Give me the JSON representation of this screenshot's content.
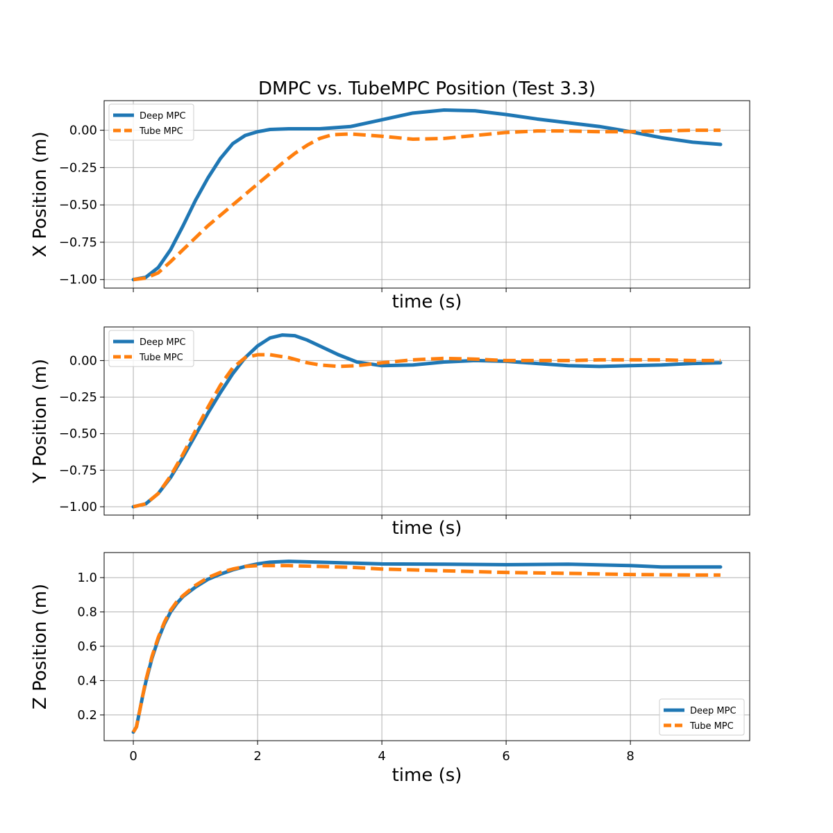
{
  "chart_data": [
    {
      "type": "line",
      "title": "DMPC vs. TubeMPC Position (Test 3.3)",
      "xlabel": "time (s)",
      "ylabel": "X Position (m)",
      "xlim": [
        -0.47,
        9.92
      ],
      "ylim": [
        -1.057,
        0.198
      ],
      "x_ticks": [
        0,
        2,
        4,
        6,
        8
      ],
      "x_tick_labels": [
        "",
        "",
        "",
        "",
        ""
      ],
      "y_ticks": [
        -1.0,
        -0.75,
        -0.5,
        -0.25,
        0.0
      ],
      "y_tick_labels": [
        "−1.00",
        "−0.75",
        "−0.50",
        "−0.25",
        "0.00"
      ],
      "grid": true,
      "legend": "upper-left",
      "series": [
        {
          "name": "Deep MPC",
          "color": "#1f77b4",
          "style": "solid",
          "points": [
            [
              0,
              -1.0
            ],
            [
              0.2,
              -0.985
            ],
            [
              0.4,
              -0.92
            ],
            [
              0.6,
              -0.8
            ],
            [
              0.8,
              -0.64
            ],
            [
              1.0,
              -0.47
            ],
            [
              1.2,
              -0.32
            ],
            [
              1.4,
              -0.19
            ],
            [
              1.6,
              -0.09
            ],
            [
              1.8,
              -0.035
            ],
            [
              2.0,
              -0.01
            ],
            [
              2.2,
              0.005
            ],
            [
              2.5,
              0.01
            ],
            [
              3.0,
              0.01
            ],
            [
              3.5,
              0.025
            ],
            [
              4.0,
              0.07
            ],
            [
              4.5,
              0.115
            ],
            [
              5.0,
              0.135
            ],
            [
              5.5,
              0.13
            ],
            [
              6.0,
              0.105
            ],
            [
              6.5,
              0.075
            ],
            [
              7.0,
              0.05
            ],
            [
              7.5,
              0.025
            ],
            [
              8.0,
              -0.01
            ],
            [
              8.5,
              -0.05
            ],
            [
              9.0,
              -0.08
            ],
            [
              9.45,
              -0.095
            ]
          ]
        },
        {
          "name": "Tube MPC",
          "color": "#ff7f0e",
          "style": "dashed",
          "points": [
            [
              0,
              -1.0
            ],
            [
              0.2,
              -0.99
            ],
            [
              0.4,
              -0.955
            ],
            [
              0.6,
              -0.88
            ],
            [
              0.8,
              -0.8
            ],
            [
              1.0,
              -0.72
            ],
            [
              1.2,
              -0.64
            ],
            [
              1.4,
              -0.57
            ],
            [
              1.6,
              -0.5
            ],
            [
              1.8,
              -0.43
            ],
            [
              2.0,
              -0.36
            ],
            [
              2.2,
              -0.29
            ],
            [
              2.4,
              -0.22
            ],
            [
              2.6,
              -0.155
            ],
            [
              2.8,
              -0.1
            ],
            [
              3.0,
              -0.055
            ],
            [
              3.2,
              -0.03
            ],
            [
              3.5,
              -0.025
            ],
            [
              4.0,
              -0.04
            ],
            [
              4.5,
              -0.06
            ],
            [
              5.0,
              -0.055
            ],
            [
              5.5,
              -0.035
            ],
            [
              6.0,
              -0.015
            ],
            [
              6.5,
              -0.005
            ],
            [
              7.0,
              -0.005
            ],
            [
              7.5,
              -0.01
            ],
            [
              8.0,
              -0.01
            ],
            [
              8.5,
              -0.005
            ],
            [
              9.0,
              0.0
            ],
            [
              9.45,
              0.0
            ]
          ]
        }
      ]
    },
    {
      "type": "line",
      "title": "",
      "xlabel": "time (s)",
      "ylabel": "Y Position (m)",
      "xlim": [
        -0.47,
        9.92
      ],
      "ylim": [
        -1.057,
        0.23
      ],
      "x_ticks": [
        0,
        2,
        4,
        6,
        8
      ],
      "x_tick_labels": [
        "",
        "",
        "",
        "",
        ""
      ],
      "y_ticks": [
        -1.0,
        -0.75,
        -0.5,
        -0.25,
        0.0
      ],
      "y_tick_labels": [
        "−1.00",
        "−0.75",
        "−0.50",
        "−0.25",
        "0.00"
      ],
      "grid": true,
      "legend": "upper-left",
      "series": [
        {
          "name": "Deep MPC",
          "color": "#1f77b4",
          "style": "solid",
          "points": [
            [
              0,
              -1.0
            ],
            [
              0.2,
              -0.98
            ],
            [
              0.4,
              -0.91
            ],
            [
              0.6,
              -0.8
            ],
            [
              0.8,
              -0.66
            ],
            [
              1.0,
              -0.51
            ],
            [
              1.2,
              -0.36
            ],
            [
              1.4,
              -0.22
            ],
            [
              1.6,
              -0.09
            ],
            [
              1.8,
              0.02
            ],
            [
              2.0,
              0.1
            ],
            [
              2.2,
              0.155
            ],
            [
              2.4,
              0.175
            ],
            [
              2.6,
              0.17
            ],
            [
              2.8,
              0.14
            ],
            [
              3.0,
              0.1
            ],
            [
              3.3,
              0.04
            ],
            [
              3.6,
              -0.01
            ],
            [
              4.0,
              -0.035
            ],
            [
              4.5,
              -0.03
            ],
            [
              5.0,
              -0.01
            ],
            [
              5.5,
              0.0
            ],
            [
              6.0,
              -0.005
            ],
            [
              6.5,
              -0.02
            ],
            [
              7.0,
              -0.035
            ],
            [
              7.5,
              -0.04
            ],
            [
              8.0,
              -0.035
            ],
            [
              8.5,
              -0.03
            ],
            [
              9.0,
              -0.02
            ],
            [
              9.45,
              -0.015
            ]
          ]
        },
        {
          "name": "Tube MPC",
          "color": "#ff7f0e",
          "style": "dashed",
          "points": [
            [
              0,
              -1.0
            ],
            [
              0.2,
              -0.98
            ],
            [
              0.4,
              -0.91
            ],
            [
              0.6,
              -0.79
            ],
            [
              0.8,
              -0.64
            ],
            [
              1.0,
              -0.48
            ],
            [
              1.2,
              -0.32
            ],
            [
              1.4,
              -0.17
            ],
            [
              1.6,
              -0.05
            ],
            [
              1.8,
              0.02
            ],
            [
              2.0,
              0.04
            ],
            [
              2.2,
              0.04
            ],
            [
              2.5,
              0.02
            ],
            [
              2.8,
              -0.015
            ],
            [
              3.0,
              -0.03
            ],
            [
              3.3,
              -0.04
            ],
            [
              3.6,
              -0.035
            ],
            [
              4.0,
              -0.015
            ],
            [
              4.5,
              0.005
            ],
            [
              5.0,
              0.015
            ],
            [
              5.5,
              0.01
            ],
            [
              6.0,
              0.0
            ],
            [
              6.5,
              0.0
            ],
            [
              7.0,
              0.0
            ],
            [
              7.5,
              0.005
            ],
            [
              8.0,
              0.005
            ],
            [
              8.5,
              0.005
            ],
            [
              9.0,
              0.0
            ],
            [
              9.45,
              0.0
            ]
          ]
        }
      ]
    },
    {
      "type": "line",
      "title": "",
      "xlabel": "time (s)",
      "ylabel": "Z Position (m)",
      "xlim": [
        -0.47,
        9.92
      ],
      "ylim": [
        0.05,
        1.146
      ],
      "x_ticks": [
        0,
        2,
        4,
        6,
        8
      ],
      "x_tick_labels": [
        "0",
        "2",
        "4",
        "6",
        "8"
      ],
      "y_ticks": [
        0.2,
        0.4,
        0.6,
        0.8,
        1.0
      ],
      "y_tick_labels": [
        "0.2",
        "0.4",
        "0.6",
        "0.8",
        "1.0"
      ],
      "grid": true,
      "legend": "lower-right",
      "series": [
        {
          "name": "Deep MPC",
          "color": "#1f77b4",
          "style": "solid",
          "points": [
            [
              0,
              0.1
            ],
            [
              0.05,
              0.13
            ],
            [
              0.1,
              0.22
            ],
            [
              0.15,
              0.31
            ],
            [
              0.2,
              0.39
            ],
            [
              0.3,
              0.53
            ],
            [
              0.4,
              0.64
            ],
            [
              0.5,
              0.73
            ],
            [
              0.6,
              0.8
            ],
            [
              0.7,
              0.85
            ],
            [
              0.8,
              0.89
            ],
            [
              1.0,
              0.945
            ],
            [
              1.2,
              0.99
            ],
            [
              1.4,
              1.02
            ],
            [
              1.6,
              1.045
            ],
            [
              1.8,
              1.065
            ],
            [
              2.0,
              1.08
            ],
            [
              2.2,
              1.09
            ],
            [
              2.5,
              1.095
            ],
            [
              3.0,
              1.09
            ],
            [
              3.5,
              1.085
            ],
            [
              4.0,
              1.08
            ],
            [
              5.0,
              1.078
            ],
            [
              6.0,
              1.075
            ],
            [
              7.0,
              1.078
            ],
            [
              8.0,
              1.07
            ],
            [
              8.5,
              1.062
            ],
            [
              9.0,
              1.062
            ],
            [
              9.45,
              1.062
            ]
          ]
        },
        {
          "name": "Tube MPC",
          "color": "#ff7f0e",
          "style": "dashed",
          "points": [
            [
              0,
              0.1
            ],
            [
              0.05,
              0.13
            ],
            [
              0.1,
              0.22
            ],
            [
              0.15,
              0.31
            ],
            [
              0.2,
              0.4
            ],
            [
              0.3,
              0.54
            ],
            [
              0.4,
              0.65
            ],
            [
              0.5,
              0.74
            ],
            [
              0.6,
              0.81
            ],
            [
              0.7,
              0.86
            ],
            [
              0.8,
              0.895
            ],
            [
              1.0,
              0.955
            ],
            [
              1.2,
              1.0
            ],
            [
              1.4,
              1.03
            ],
            [
              1.6,
              1.05
            ],
            [
              1.8,
              1.065
            ],
            [
              2.0,
              1.07
            ],
            [
              2.5,
              1.07
            ],
            [
              3.0,
              1.065
            ],
            [
              3.5,
              1.06
            ],
            [
              4.0,
              1.05
            ],
            [
              5.0,
              1.04
            ],
            [
              6.0,
              1.03
            ],
            [
              7.0,
              1.025
            ],
            [
              8.0,
              1.018
            ],
            [
              9.0,
              1.015
            ],
            [
              9.45,
              1.015
            ]
          ]
        }
      ]
    }
  ]
}
